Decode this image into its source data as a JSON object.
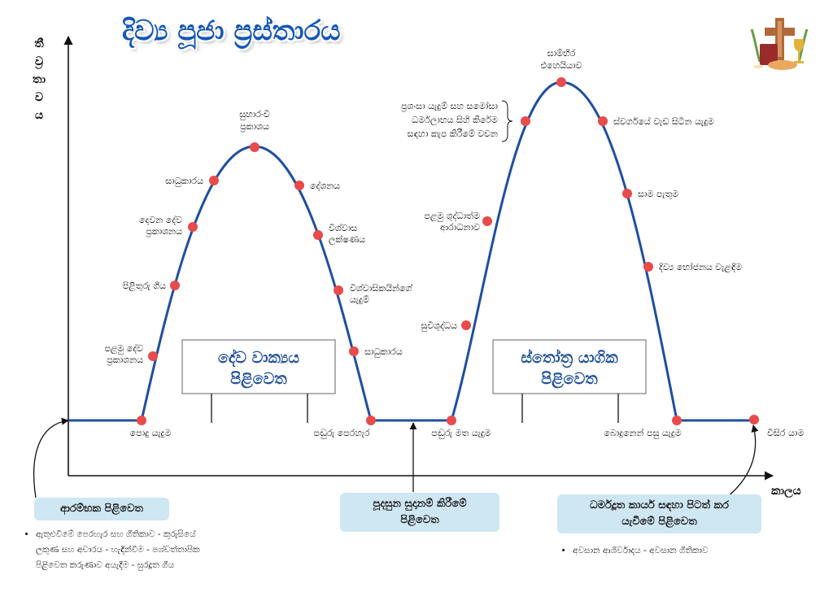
{
  "title": "දිව්‍ය පූජා ප්‍රස්තාරය",
  "y_axis_label": [
    "තී",
    "ව්‍ර",
    "තා",
    "ව",
    "ය"
  ],
  "x_axis_label": "කාලය",
  "colors": {
    "curve": "#1f4fa0",
    "dot": "#e94b4b",
    "title": "#1457b4",
    "callout_bg": "#cfe6f3"
  },
  "emblem_icon": "altar-cross-chalice-icon",
  "points": {
    "p1": "පොදු යැදුම",
    "p2": [
      "පළමු දේව",
      "ප්‍රකාශනය"
    ],
    "p3": "පිළිතුරු ගීය",
    "p4": [
      "දෙවන දේව",
      "ප්‍රකාශනය"
    ],
    "p5": "සාධුකාරය",
    "p6": [
      "සුභාරංචි",
      "ප්‍රකාශය"
    ],
    "p7": "දේශනය",
    "p8": [
      "විශ්වාස",
      "ලක්ෂණය"
    ],
    "p9": [
      "විශ්වාසිකයින්ගේ",
      "යැදුම්"
    ],
    "p10": "සාධුකාරය",
    "p11": "පඬුරු පෙරහැර",
    "p12": "පඬුරු මත යැදුම",
    "p13": "සුවිශුද්ධය",
    "p14": [
      "පළමු ශුද්ධාත්ම",
      "ආරාධනාව"
    ],
    "p15": [
      "ප්‍රශංසා යැදුම් සහ සමෝසා",
      "ධර්මලාභය සිහි කිරේම",
      "සඳහා කැප කිරීමේ වචන"
    ],
    "p16": [
      "ඝාම්භීර",
      "එහෙයියාව"
    ],
    "p17": "ස්වර්ගයේ වැඩ සිටින යැදුම",
    "p18": "සාම පැතුම",
    "p19": "දිව්‍ය භෝජනය වැළඳීම",
    "p20": "බොදුනෙන් පසු යැදුම",
    "p21": "විසිර යාම"
  },
  "boxes": {
    "word": [
      "දේව වාක්‍යය",
      "පිළිවෙත"
    ],
    "eucharist": [
      "ස්තෝත්‍ර යාගික",
      "පිළිවෙත"
    ]
  },
  "callouts": {
    "opening": "ආරම්භක පිළිවෙත",
    "offertory": [
      "පූදසුන සුදානම් කිරීමේ",
      "පිළිවෙත"
    ],
    "sending": [
      "ධර්මදූත කාර්ය සඳහා පිටත් කර",
      "යැවීමේ පිළිවෙත"
    ]
  },
  "notes": {
    "opening": [
      "ඇතුළුවීමේ පෙරහැර සහ ගීතිකාව - කුරුසියේ",
      "ලකුණ සහ අචාරය - හැඳින්වීම - පශ්චත්තාපික",
      "පිළිවෙත කරුණාව අයැදීම - සුරදූත ගීය"
    ],
    "sending": "අවසාන ආශිර්වාදය - අවසාන ගීතිකාව"
  }
}
